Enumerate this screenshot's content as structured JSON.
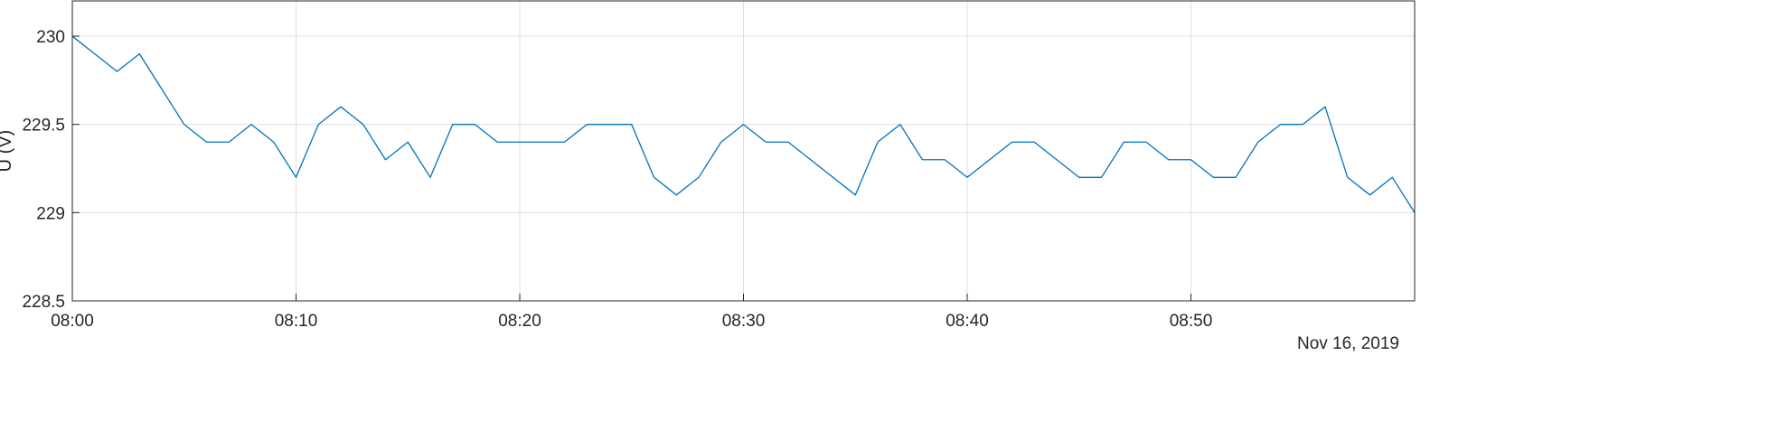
{
  "chart_data": {
    "type": "line",
    "title": "",
    "xlabel": "",
    "ylabel": "U (V)",
    "date_label": "Nov 16, 2019",
    "x_start": "08:00",
    "x_end": "09:00",
    "xlim": [
      "08:00",
      "09:00"
    ],
    "xticks": [
      "08:00",
      "08:10",
      "08:20",
      "08:30",
      "08:40",
      "08:50"
    ],
    "ylim": [
      228.5,
      230.2
    ],
    "yticks": [
      228.5,
      229,
      229.5,
      230
    ],
    "ytick_labels": [
      "228.5",
      "229",
      "229.5",
      "230"
    ],
    "grid": true,
    "colors": {
      "line": "#0072BD",
      "grid": "#DFDFDF",
      "axis": "#262626"
    },
    "series": [
      {
        "name": "",
        "x": [
          "08:00",
          "08:01",
          "08:02",
          "08:03",
          "08:04",
          "08:05",
          "08:06",
          "08:07",
          "08:08",
          "08:09",
          "08:10",
          "08:11",
          "08:12",
          "08:13",
          "08:14",
          "08:15",
          "08:16",
          "08:17",
          "08:18",
          "08:19",
          "08:20",
          "08:21",
          "08:22",
          "08:23",
          "08:24",
          "08:25",
          "08:26",
          "08:27",
          "08:28",
          "08:29",
          "08:30",
          "08:31",
          "08:32",
          "08:33",
          "08:34",
          "08:35",
          "08:36",
          "08:37",
          "08:38",
          "08:39",
          "08:40",
          "08:41",
          "08:42",
          "08:43",
          "08:44",
          "08:45",
          "08:46",
          "08:47",
          "08:48",
          "08:49",
          "08:50",
          "08:51",
          "08:52",
          "08:53",
          "08:54",
          "08:55",
          "08:56",
          "08:57",
          "08:58",
          "08:59",
          "09:00"
        ],
        "values": [
          230.0,
          229.9,
          229.8,
          229.9,
          229.7,
          229.5,
          229.4,
          229.4,
          229.5,
          229.4,
          229.2,
          229.5,
          229.6,
          229.5,
          229.3,
          229.4,
          229.2,
          229.5,
          229.5,
          229.4,
          229.4,
          229.4,
          229.4,
          229.5,
          229.5,
          229.5,
          229.2,
          229.1,
          229.2,
          229.4,
          229.5,
          229.4,
          229.4,
          229.3,
          229.2,
          229.1,
          229.4,
          229.5,
          229.3,
          229.3,
          229.2,
          229.3,
          229.4,
          229.4,
          229.3,
          229.2,
          229.2,
          229.4,
          229.4,
          229.3,
          229.3,
          229.2,
          229.2,
          229.4,
          229.5,
          229.5,
          229.6,
          229.2,
          229.1,
          229.2,
          229.0
        ]
      }
    ]
  }
}
